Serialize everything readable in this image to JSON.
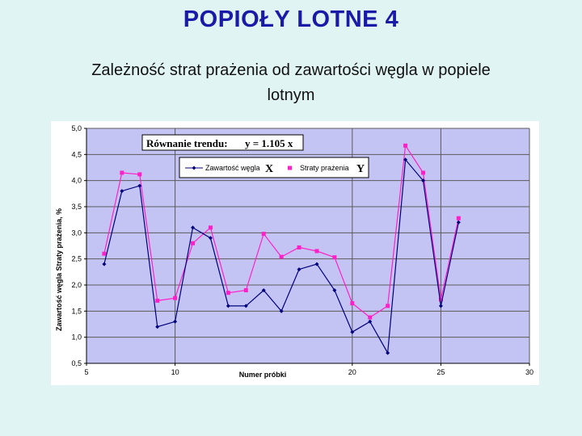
{
  "page": {
    "title": "POPIOŁY  LOTNE 4",
    "subtitle_line1": "Zależność strat  prażenia od zawartości węgla w popiele",
    "subtitle_line2": "lotnym"
  },
  "colors": {
    "plot_background": "#c4c4f4",
    "gridline": "#5a5a5a",
    "series_carbon": "#00007e",
    "series_loss": "#ff1fc8"
  },
  "chart_data": {
    "type": "line",
    "trend_label": "Równanie trendu:",
    "trend_equation": "y = 1.105 x",
    "xlabel": "Numer próbki",
    "ylabel": "Zawartość węgla  Straty prażenia, %",
    "xlim": [
      5,
      30
    ],
    "ylim": [
      0.5,
      5.0
    ],
    "x_ticks": [
      {
        "value": 5,
        "label": "5"
      },
      {
        "value": 10,
        "label": "10"
      },
      {
        "value": 20,
        "label": "20"
      },
      {
        "value": 25,
        "label": "25"
      },
      {
        "value": 30,
        "label": "30"
      }
    ],
    "y_ticks": [
      {
        "value": 0.5,
        "label": "0,5"
      },
      {
        "value": 1.0,
        "label": "1,0"
      },
      {
        "value": 1.5,
        "label": "1,5"
      },
      {
        "value": 2.0,
        "label": "2,0"
      },
      {
        "value": 2.5,
        "label": "2,5"
      },
      {
        "value": 3.0,
        "label": "3,0"
      },
      {
        "value": 3.5,
        "label": "3,5"
      },
      {
        "value": 4.0,
        "label": "4,0"
      },
      {
        "value": 4.5,
        "label": "4,5"
      },
      {
        "value": 5.0,
        "label": "5,0"
      }
    ],
    "x_gridlines": [
      10,
      20,
      25,
      30
    ],
    "legend": {
      "placement": "top-center"
    },
    "x": [
      6,
      7,
      8,
      9,
      10,
      11,
      12,
      13,
      14,
      15,
      16,
      17,
      18,
      19,
      20,
      21,
      22,
      23,
      24,
      25,
      26
    ],
    "series": [
      {
        "name": "Zawartość węgla",
        "legend_symbol": "X",
        "marker": "diamond",
        "color": "#00007e",
        "values": [
          2.4,
          3.8,
          3.9,
          1.2,
          1.3,
          3.1,
          2.9,
          1.6,
          1.6,
          1.9,
          1.5,
          2.3,
          2.4,
          1.9,
          1.1,
          1.3,
          0.7,
          4.4,
          4.0,
          1.6,
          3.2
        ]
      },
      {
        "name": "Straty prażenia",
        "legend_symbol": "Y",
        "marker": "square",
        "color": "#ff1fc8",
        "values": [
          2.6,
          4.15,
          4.12,
          1.7,
          1.75,
          2.8,
          3.1,
          1.85,
          1.9,
          2.98,
          2.54,
          2.72,
          2.65,
          2.53,
          1.65,
          1.38,
          1.6,
          4.67,
          4.15,
          1.72,
          3.28
        ]
      }
    ]
  }
}
